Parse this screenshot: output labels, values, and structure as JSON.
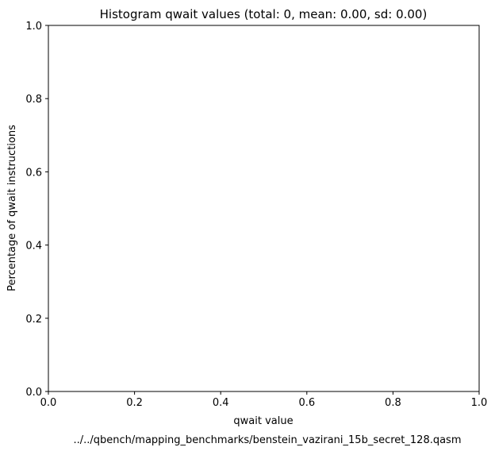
{
  "chart_data": {
    "type": "bar",
    "title": "Histogram qwait values (total: 0, mean: 0.00, sd: 0.00)",
    "xlabel": "qwait value",
    "ylabel": "Percentage of qwait instructions",
    "caption": "../../qbench/mapping_benchmarks/benstein_vazirani_15b_secret_128.qasm",
    "categories": [],
    "values": [],
    "xlim": [
      0.0,
      1.0
    ],
    "ylim": [
      0.0,
      1.0
    ],
    "x_ticks": [
      "0.0",
      "0.2",
      "0.4",
      "0.6",
      "0.8",
      "1.0"
    ],
    "y_ticks": [
      "0.0",
      "0.2",
      "0.4",
      "0.6",
      "0.8",
      "1.0"
    ],
    "grid": false,
    "legend": "none"
  }
}
